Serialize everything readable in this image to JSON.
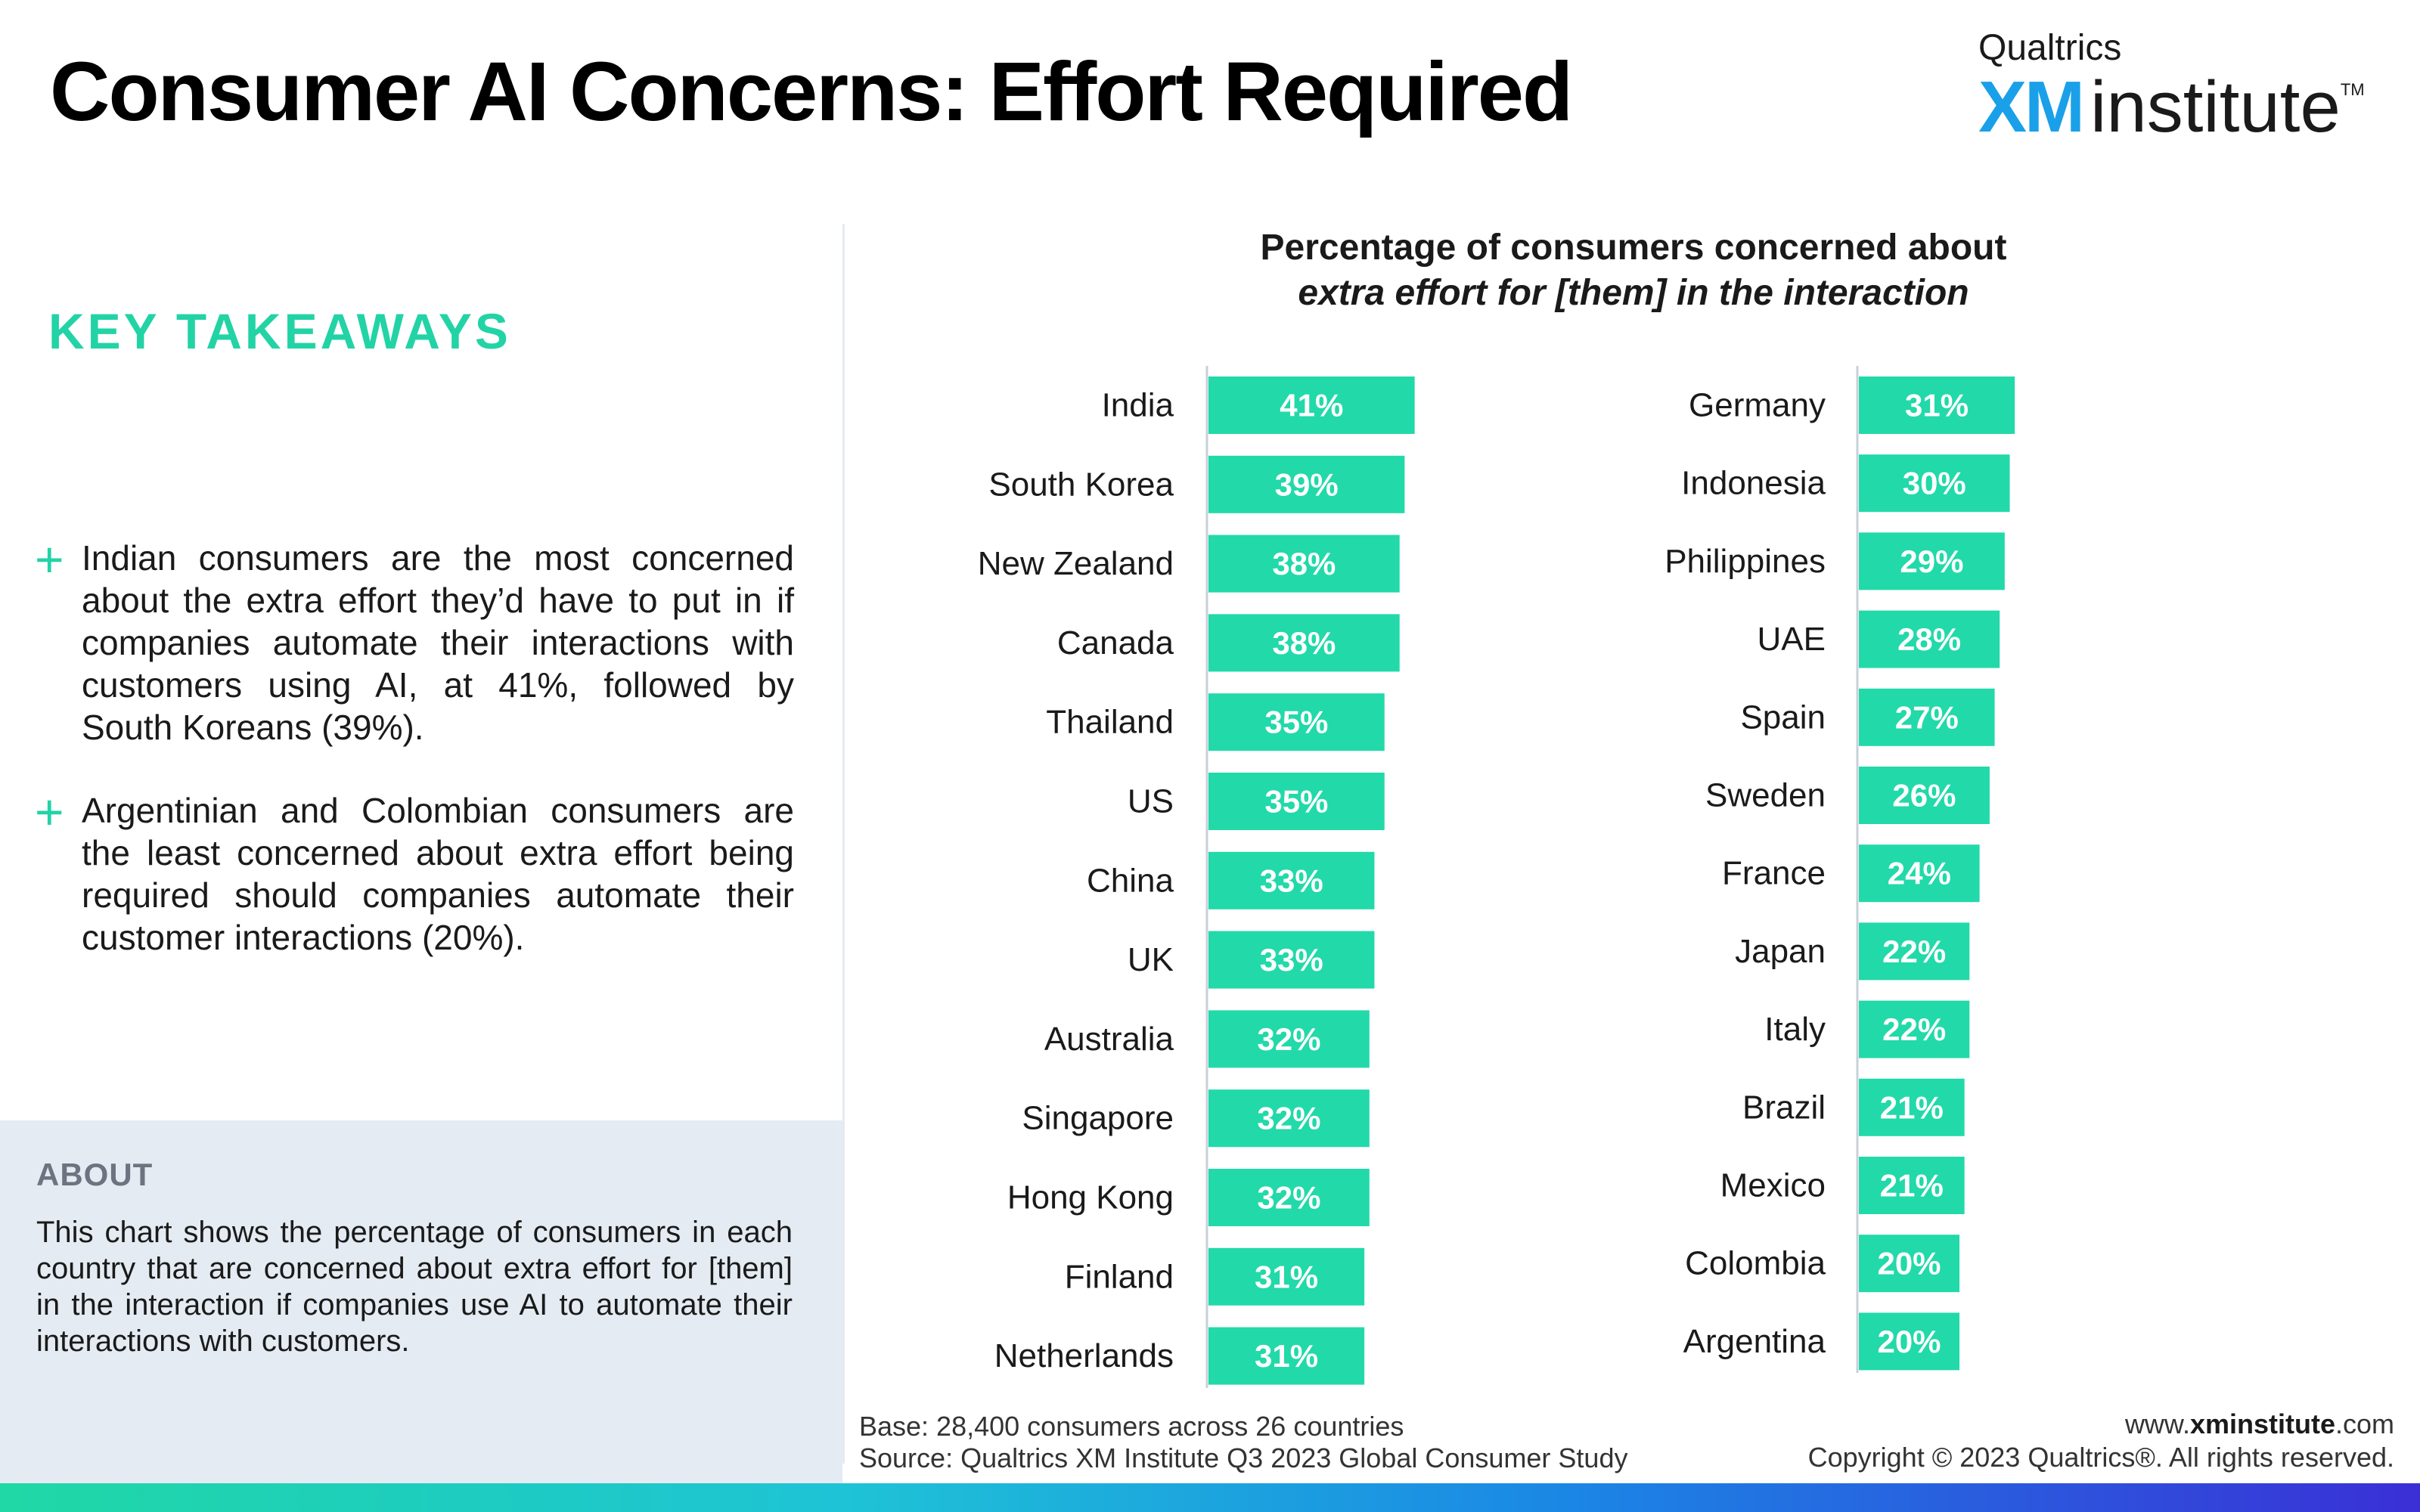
{
  "header": {
    "title": "Consumer AI Concerns: Effort Required",
    "logo_top": "Qualtrics",
    "logo_xm": "XM",
    "logo_institute": "institute",
    "logo_tm": "TM"
  },
  "sidebar": {
    "key_takeaways_heading": "KEY TAKEAWAYS",
    "plus_symbol": "+",
    "takeaways": [
      "Indian consumers are the most concerned about the extra effort they’d have to put in if companies automate their interactions with customers using AI, at 41%, followed by South Koreans (39%).",
      "Argentinian and Colombian consumers are the least concerned about extra effort being required should companies automate their customer interactions (20%)."
    ],
    "about_heading": "ABOUT",
    "about_text": "This chart shows the percentage of consumers in each country that are concerned about extra effort for [them] in the interaction if companies use AI to automate their interactions with customers."
  },
  "chart_data": {
    "type": "bar",
    "orientation": "horizontal",
    "title": "Percentage of consumers concerned about",
    "subtitle": "extra effort for [them] in the interaction",
    "value_suffix": "%",
    "bar_color": "#22d9a9",
    "categories": [
      "India",
      "South Korea",
      "New Zealand",
      "Canada",
      "Thailand",
      "US",
      "China",
      "UK",
      "Australia",
      "Singapore",
      "Hong Kong",
      "Finland",
      "Netherlands",
      "Germany",
      "Indonesia",
      "Philippines",
      "UAE",
      "Spain",
      "Sweden",
      "France",
      "Japan",
      "Italy",
      "Brazil",
      "Mexico",
      "Colombia",
      "Argentina"
    ],
    "values": [
      41,
      39,
      38,
      38,
      35,
      35,
      33,
      33,
      32,
      32,
      32,
      31,
      31,
      31,
      30,
      29,
      28,
      27,
      26,
      24,
      22,
      22,
      21,
      21,
      20,
      20
    ],
    "panels": [
      {
        "categories": [
          "India",
          "South Korea",
          "New Zealand",
          "Canada",
          "Thailand",
          "US",
          "China",
          "UK",
          "Australia",
          "Singapore",
          "Hong Kong",
          "Finland",
          "Netherlands"
        ],
        "values": [
          41,
          39,
          38,
          38,
          35,
          35,
          33,
          33,
          32,
          32,
          32,
          31,
          31
        ]
      },
      {
        "categories": [
          "Germany",
          "Indonesia",
          "Philippines",
          "UAE",
          "Spain",
          "Sweden",
          "France",
          "Japan",
          "Italy",
          "Brazil",
          "Mexico",
          "Colombia",
          "Argentina"
        ],
        "values": [
          31,
          30,
          29,
          28,
          27,
          26,
          24,
          22,
          22,
          21,
          21,
          20,
          20
        ]
      }
    ]
  },
  "footer": {
    "base": "Base: 28,400 consumers across 26 countries",
    "source": "Source: Qualtrics XM Institute Q3 2023 Global Consumer Study",
    "url_prefix": "www.",
    "url_bold": "xminstitute",
    "url_suffix": ".com",
    "copyright": "Copyright © 2023 Qualtrics®. All rights reserved."
  }
}
